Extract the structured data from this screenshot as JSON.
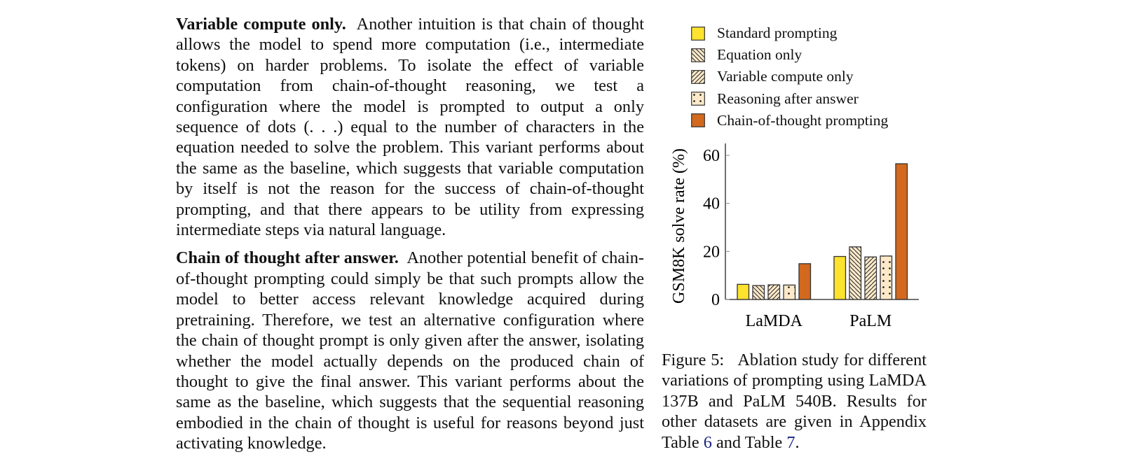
{
  "paragraphs": [
    {
      "heading": "Variable compute only.",
      "text": "Another intuition is that chain of thought allows the model to spend more computation (i.e., intermediate tokens) on harder problems. To isolate the effect of variable computation from chain-of-thought reasoning, we test a configuration where the model is prompted to output a only sequence of dots (. . .) equal to the number of characters in the equation needed to solve the problem. This variant performs about the same as the baseline, which suggests that variable computation by itself is not the reason for the success of chain-of-thought prompting, and that there appears to be utility from expressing intermediate steps via natural language."
    },
    {
      "heading": "Chain of thought after answer.",
      "text": "Another potential benefit of chain-of-thought prompting could simply be that such prompts allow the model to better access relevant knowledge acquired during pretraining. Therefore, we test an alternative configuration where the chain of thought prompt is only given after the answer, isolating whether the model actually depends on the produced chain of thought to give the final answer. This variant performs about the same as the baseline, which suggests that the sequential reasoning embodied in the chain of thought is useful for reasons beyond just activating knowledge."
    }
  ],
  "caption": {
    "label": "Figure 5:",
    "text": "Ablation study for different variations of prompting using LaMDA 137B and PaLM 540B. Results for other datasets are given in Appendix Table",
    "ref1": "6",
    "mid": "and Table",
    "ref2": "7",
    "end": "."
  },
  "chart_data": {
    "type": "bar",
    "title": "",
    "xlabel": "",
    "ylabel": "GSM8K solve rate (%)",
    "categories": [
      "LaMDA",
      "PaLM"
    ],
    "ylim": [
      0,
      65
    ],
    "yticks": [
      0,
      20,
      40,
      60
    ],
    "grid": false,
    "legend_position": "top",
    "series": [
      {
        "name": "Standard prompting",
        "values": [
          6.3,
          17.9
        ],
        "color": "#fde22e",
        "pattern": "solid"
      },
      {
        "name": "Equation only",
        "values": [
          5.8,
          21.9
        ],
        "color": "#fde9c9",
        "pattern": "backslash-hatch"
      },
      {
        "name": "Variable compute only",
        "values": [
          6.1,
          17.7
        ],
        "color": "#fde9c9",
        "pattern": "slash-hatch"
      },
      {
        "name": "Reasoning after answer",
        "values": [
          6.0,
          18.1
        ],
        "color": "#fde9c9",
        "pattern": "dots"
      },
      {
        "name": "Chain-of-thought prompting",
        "values": [
          14.9,
          56.5
        ],
        "color": "#d2691e",
        "pattern": "solid"
      }
    ]
  }
}
